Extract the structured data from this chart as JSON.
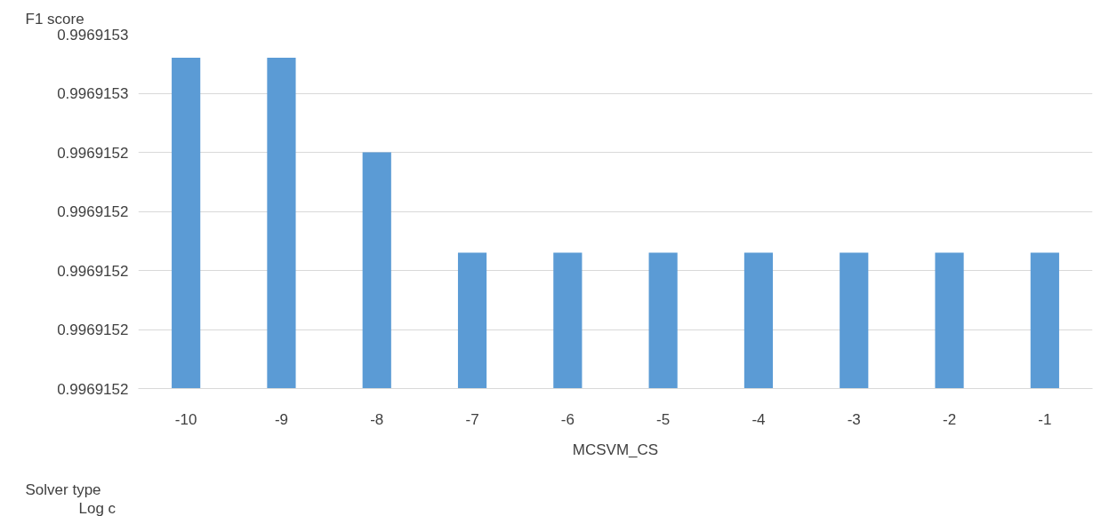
{
  "chart_data": {
    "type": "bar",
    "categories": [
      "-10",
      "-9",
      "-8",
      "-7",
      "-6",
      "-5",
      "-4",
      "-3",
      "-2",
      "-1"
    ],
    "values": [
      0.996915256,
      0.996915256,
      0.99691524,
      0.996915223,
      0.996915223,
      0.996915223,
      0.996915223,
      0.996915223,
      0.996915223,
      0.996915223
    ],
    "color": "#5b9bd5",
    "xlabel": "MCSVM_CS",
    "annotations": [
      "F1 score",
      "Log c",
      "Solver type"
    ],
    "ylim": [
      0.9969152,
      0.99691526
    ],
    "yticks": [
      {
        "value": 0.9969152,
        "label": "0.9969152"
      },
      {
        "value": 0.99691521,
        "label": "0.9969152"
      },
      {
        "value": 0.99691522,
        "label": "0.9969152"
      },
      {
        "value": 0.99691523,
        "label": "0.9969152"
      },
      {
        "value": 0.99691524,
        "label": "0.9969152"
      },
      {
        "value": 0.99691525,
        "label": "0.9969153"
      },
      {
        "value": 0.99691526,
        "label": "0.9969153"
      }
    ],
    "grid": "y"
  }
}
